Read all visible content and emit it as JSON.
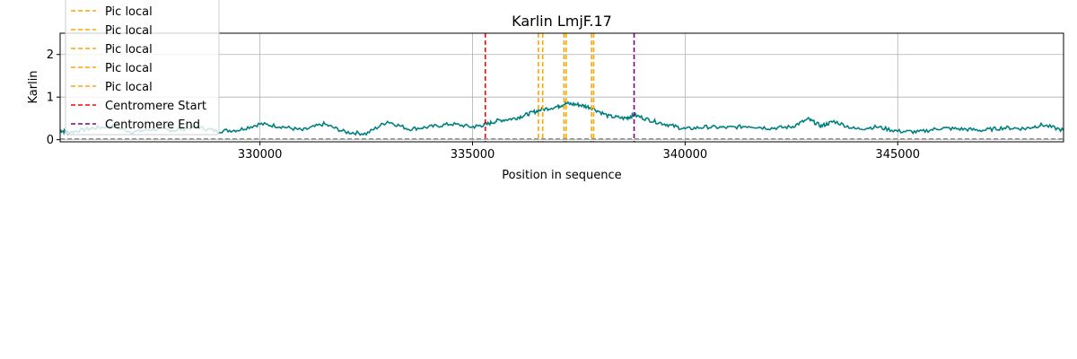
{
  "chart_data": {
    "type": "line",
    "title": "Karlin LmjF.17",
    "xlabel": "Position in sequence",
    "ylabel": "Karlin",
    "xlim": [
      325300,
      348900
    ],
    "ylim": [
      -0.05,
      2.5
    ],
    "xticks": [
      330000,
      335000,
      340000,
      345000
    ],
    "yticks": [
      0,
      1,
      2
    ],
    "grid": true,
    "legend_position": "top-left",
    "series": [
      {
        "name": "",
        "color": "#008080",
        "x": [
          325300,
          325500,
          326000,
          326500,
          327000,
          327500,
          328000,
          328500,
          329000,
          329500,
          330000,
          330500,
          331000,
          331500,
          332000,
          332500,
          333000,
          333500,
          334000,
          334500,
          335000,
          335300,
          335600,
          336000,
          336300,
          336600,
          337000,
          337200,
          337500,
          337800,
          338200,
          338600,
          338800,
          339200,
          339600,
          340000,
          340500,
          341000,
          341500,
          342000,
          342500,
          342900,
          343200,
          343500,
          344000,
          344500,
          345000,
          345500,
          346000,
          346500,
          347000,
          347500,
          348000,
          348400,
          348900
        ],
        "y": [
          0.22,
          0.17,
          0.26,
          0.32,
          0.18,
          0.25,
          0.22,
          0.3,
          0.2,
          0.23,
          0.37,
          0.31,
          0.22,
          0.37,
          0.18,
          0.14,
          0.43,
          0.25,
          0.3,
          0.37,
          0.3,
          0.35,
          0.45,
          0.5,
          0.6,
          0.7,
          0.78,
          0.85,
          0.82,
          0.75,
          0.55,
          0.5,
          0.58,
          0.45,
          0.35,
          0.25,
          0.3,
          0.28,
          0.32,
          0.27,
          0.3,
          0.48,
          0.32,
          0.43,
          0.25,
          0.3,
          0.2,
          0.18,
          0.27,
          0.25,
          0.22,
          0.28,
          0.26,
          0.35,
          0.22
        ]
      },
      {
        "name": "",
        "color": "#7f7f7f",
        "x": [
          325300,
          348900
        ],
        "y": [
          0.02,
          0.02
        ]
      }
    ],
    "vlines": [
      {
        "name": "Pic local",
        "x": 336650,
        "color": "#ffa500"
      },
      {
        "name": "Pic local",
        "x": 337150,
        "color": "#ffa500"
      },
      {
        "name": "Pic local",
        "x": 337850,
        "color": "#ffa500"
      },
      {
        "name": "Pic local",
        "x": 336550,
        "color": "#ffa500"
      },
      {
        "name": "Pic local",
        "x": 337800,
        "color": "#ffa500"
      },
      {
        "name": "Centromere Start",
        "x": 335300,
        "color": "#ff0000"
      },
      {
        "name": "Centromere End",
        "x": 338800,
        "color": "#800080"
      }
    ],
    "extra_orange_x": [
      337200
    ],
    "legend": [
      {
        "label": "Pic local",
        "color": "#ffa500"
      },
      {
        "label": "Pic local",
        "color": "#ffa500"
      },
      {
        "label": "Pic local",
        "color": "#ffa500"
      },
      {
        "label": "Pic local",
        "color": "#ffa500"
      },
      {
        "label": "Pic local",
        "color": "#ffa500"
      },
      {
        "label": "Centromere Start",
        "color": "#ff0000"
      },
      {
        "label": "Centromere End",
        "color": "#800080"
      }
    ]
  }
}
